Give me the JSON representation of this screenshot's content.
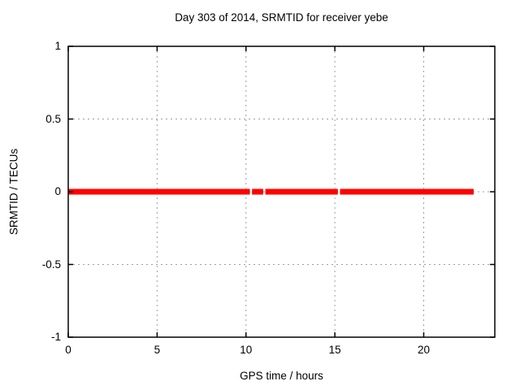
{
  "chart_data": {
    "type": "line",
    "title": "Day 303 of 2014, SRMTID for receiver yebe",
    "xlabel": "GPS time / hours",
    "ylabel": "SRMTID / TECUs",
    "xlim": [
      0,
      24
    ],
    "ylim": [
      -1,
      1
    ],
    "xticks": [
      0,
      5,
      10,
      15,
      20
    ],
    "yticks": [
      1,
      0.5,
      0,
      -0.5,
      -1
    ],
    "ytick_labels": [
      "1",
      "0.5",
      "0",
      "-0.5",
      "-1"
    ],
    "xtick_labels": [
      "0",
      "5",
      "10",
      "15",
      "20"
    ],
    "grid": "dashed, at every major tick",
    "legend_position": "none",
    "series": [
      {
        "name": "SRMTID",
        "style": "thick horizontal band of points",
        "color": "#ff0000",
        "constant_value": 0,
        "segments": [
          {
            "x_start": 0.0,
            "x_end": 10.22,
            "y": 0
          },
          {
            "x_start": 10.34,
            "x_end": 10.97,
            "y": 0
          },
          {
            "x_start": 11.09,
            "x_end": 15.17,
            "y": 0
          },
          {
            "x_start": 15.29,
            "x_end": 22.81,
            "y": 0
          }
        ]
      }
    ],
    "colors": {
      "series": "#ff0000",
      "grid": "#9e9e9e",
      "border": "#000000",
      "text": "#000000",
      "background": "#ffffff"
    }
  }
}
